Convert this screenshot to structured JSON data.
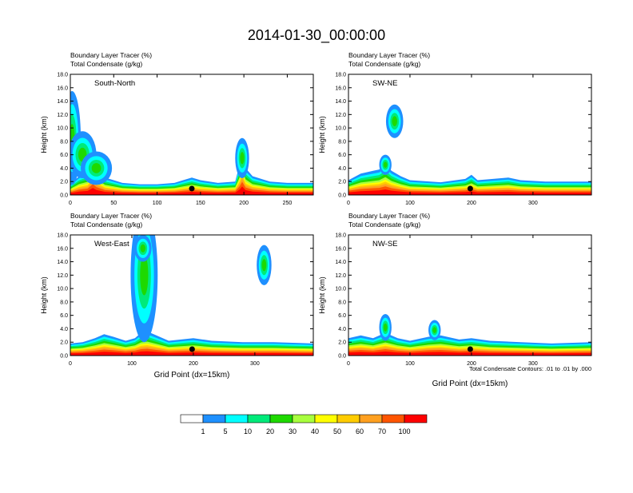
{
  "title": "2014-01-30_00:00:00",
  "footnote": "Total Condensate Contours: .01 to .01 by .000",
  "colorbar": {
    "labels": [
      "1",
      "5",
      "10",
      "20",
      "30",
      "40",
      "50",
      "60",
      "70",
      "100"
    ],
    "colors": [
      "#ffffff",
      "#1e90ff",
      "#00ffff",
      "#00ea7a",
      "#1ed900",
      "#a8ff3e",
      "#ffff00",
      "#ffcc00",
      "#ffa020",
      "#ff5500",
      "#ff0000"
    ]
  },
  "chart_data": [
    {
      "type": "heatmap",
      "subtitle_lines": [
        "Boundary Layer Tracer   (%)",
        "Total Condensate   (g/kg)"
      ],
      "panel_label": "South-North",
      "ylabel": "Height (km)",
      "xlabel": "",
      "xlim": [
        0,
        280
      ],
      "xticks": [
        0,
        50,
        100,
        150,
        200,
        250
      ],
      "ylim": [
        0,
        18
      ],
      "yticks": [
        "0.0",
        "2.0",
        "4.0",
        "6.0",
        "8.0",
        "10.0",
        "12.0",
        "14.0",
        "16.0",
        "18.0"
      ],
      "marker_x": 140,
      "bl_profile": [
        [
          0,
          1.6
        ],
        [
          10,
          2.8
        ],
        [
          20,
          3.4
        ],
        [
          26,
          5.8
        ],
        [
          30,
          4.2
        ],
        [
          40,
          2.6
        ],
        [
          50,
          2.2
        ],
        [
          60,
          1.8
        ],
        [
          80,
          1.6
        ],
        [
          100,
          1.6
        ],
        [
          120,
          1.8
        ],
        [
          130,
          2.2
        ],
        [
          140,
          2.6
        ],
        [
          150,
          2.2
        ],
        [
          170,
          1.8
        ],
        [
          190,
          2.0
        ],
        [
          195,
          4.5
        ],
        [
          198,
          7.0
        ],
        [
          202,
          4.0
        ],
        [
          210,
          2.8
        ],
        [
          230,
          2.0
        ],
        [
          250,
          1.8
        ],
        [
          280,
          1.8
        ]
      ],
      "plume_cells": [
        [
          2,
          8.5,
          10,
          7
        ],
        [
          14,
          6,
          16,
          3.5
        ],
        [
          30,
          4,
          18,
          2.5
        ],
        [
          198,
          5.5,
          8,
          3
        ]
      ]
    },
    {
      "type": "heatmap",
      "subtitle_lines": [
        "Boundary Layer Tracer   (%)",
        "Total Condensate   (g/kg)"
      ],
      "panel_label": "SW-NE",
      "ylabel": "Height (km)",
      "xlabel": "",
      "xlim": [
        0,
        395
      ],
      "xticks": [
        0,
        100,
        200,
        300
      ],
      "ylim": [
        0,
        18
      ],
      "yticks": [
        "0.0",
        "2.0",
        "4.0",
        "6.0",
        "8.0",
        "10.0",
        "12.0",
        "14.0",
        "16.0",
        "18.0"
      ],
      "marker_x": 198,
      "bl_profile": [
        [
          0,
          2.2
        ],
        [
          20,
          3.2
        ],
        [
          40,
          3.6
        ],
        [
          50,
          3.8
        ],
        [
          60,
          4.6
        ],
        [
          70,
          3.6
        ],
        [
          85,
          2.8
        ],
        [
          100,
          2.2
        ],
        [
          150,
          1.9
        ],
        [
          190,
          2.4
        ],
        [
          200,
          3.0
        ],
        [
          210,
          2.2
        ],
        [
          260,
          2.6
        ],
        [
          280,
          2.2
        ],
        [
          320,
          2.0
        ],
        [
          395,
          2.0
        ]
      ],
      "plume_cells": [
        [
          75,
          11,
          14,
          2.5
        ],
        [
          60,
          4.5,
          10,
          1.5
        ]
      ]
    },
    {
      "type": "heatmap",
      "subtitle_lines": [
        "Boundary Layer Tracer   (%)",
        "Total Condensate   (g/kg)"
      ],
      "panel_label": "West-East",
      "ylabel": "Height (km)",
      "xlabel": "Grid Point (dx=15km)",
      "xlim": [
        0,
        395
      ],
      "xticks": [
        0,
        100,
        200,
        300
      ],
      "ylim": [
        0,
        18
      ],
      "yticks": [
        "0.0",
        "2.0",
        "4.0",
        "6.0",
        "8.0",
        "10.0",
        "12.0",
        "14.0",
        "16.0",
        "18.0"
      ],
      "marker_x": 198,
      "bl_profile": [
        [
          0,
          1.8
        ],
        [
          20,
          2.0
        ],
        [
          40,
          2.6
        ],
        [
          55,
          3.2
        ],
        [
          70,
          2.8
        ],
        [
          90,
          2.2
        ],
        [
          105,
          2.6
        ],
        [
          115,
          3.4
        ],
        [
          125,
          3.6
        ],
        [
          140,
          3.0
        ],
        [
          160,
          2.2
        ],
        [
          200,
          2.6
        ],
        [
          230,
          2.2
        ],
        [
          280,
          2.0
        ],
        [
          330,
          2.0
        ],
        [
          395,
          1.8
        ]
      ],
      "plume_cells": [
        [
          120,
          12,
          22,
          10
        ],
        [
          118,
          16,
          14,
          2
        ],
        [
          315,
          13.5,
          12,
          3
        ]
      ]
    },
    {
      "type": "heatmap",
      "subtitle_lines": [
        "Boundary Layer Tracer   (%)",
        "Total Condensate   (g/kg)"
      ],
      "panel_label": "NW-SE",
      "ylabel": "Height (km)",
      "xlabel": "Grid Point (dx=15km)",
      "xlim": [
        0,
        395
      ],
      "xticks": [
        0,
        100,
        200,
        300
      ],
      "ylim": [
        0,
        18
      ],
      "yticks": [
        "0.0",
        "2.0",
        "4.0",
        "6.0",
        "8.0",
        "10.0",
        "12.0",
        "14.0",
        "16.0",
        "18.0"
      ],
      "marker_x": 198,
      "bl_profile": [
        [
          0,
          2.6
        ],
        [
          20,
          3.0
        ],
        [
          40,
          2.6
        ],
        [
          60,
          3.4
        ],
        [
          80,
          2.6
        ],
        [
          100,
          2.2
        ],
        [
          130,
          2.8
        ],
        [
          150,
          3.0
        ],
        [
          180,
          2.4
        ],
        [
          200,
          2.6
        ],
        [
          230,
          2.2
        ],
        [
          280,
          2.0
        ],
        [
          330,
          1.8
        ],
        [
          395,
          2.0
        ]
      ],
      "plume_cells": [
        [
          60,
          4.2,
          10,
          2
        ],
        [
          140,
          3.8,
          10,
          1.5
        ]
      ]
    }
  ]
}
